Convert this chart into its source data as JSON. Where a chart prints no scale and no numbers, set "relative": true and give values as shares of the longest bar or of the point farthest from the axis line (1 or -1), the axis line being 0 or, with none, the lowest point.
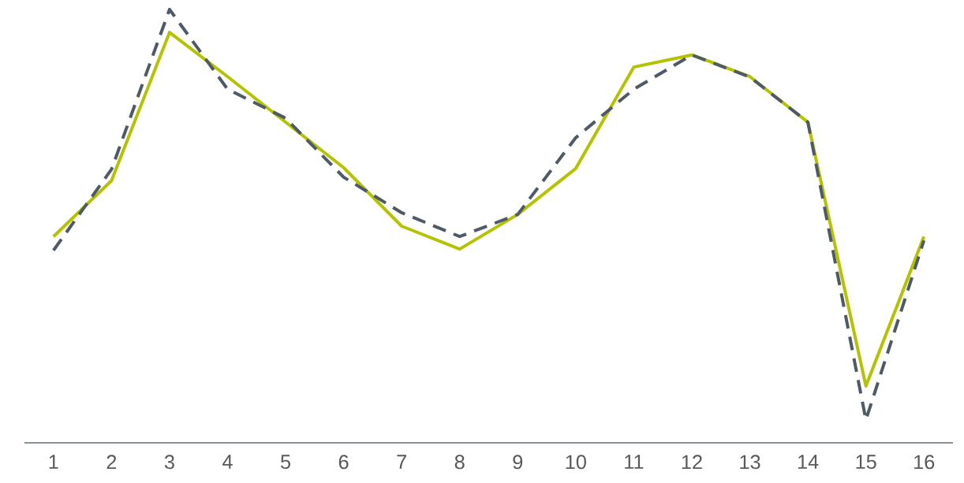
{
  "chart_data": {
    "type": "line",
    "relative": true,
    "categories": [
      "1",
      "2",
      "3",
      "4",
      "5",
      "6",
      "7",
      "8",
      "9",
      "10",
      "11",
      "12",
      "13",
      "14",
      "15",
      "16"
    ],
    "series": [
      {
        "color": "#b5c200",
        "line_style": "solid",
        "values": [
          0.476,
          0.605,
          0.947,
          0.845,
          0.74,
          0.635,
          0.5,
          0.447,
          0.527,
          0.633,
          0.867,
          0.895,
          0.845,
          0.74,
          0.131,
          0.476
        ]
      },
      {
        "color": "#4e5a66",
        "line_style": "dashed",
        "values": [
          0.444,
          0.631,
          1.0,
          0.816,
          0.749,
          0.613,
          0.531,
          0.476,
          0.527,
          0.704,
          0.816,
          0.895,
          0.844,
          0.74,
          0.053,
          0.467
        ]
      }
    ]
  }
}
